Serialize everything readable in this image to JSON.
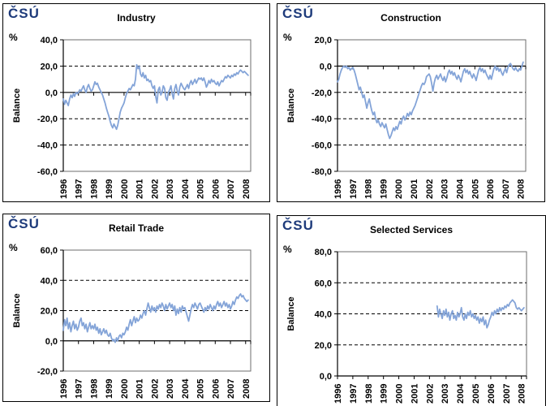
{
  "logo_text": "ČSÚ",
  "colors": {
    "line": "#84A4D8",
    "logo_blue": "#1E3B7B",
    "axis": "#000000",
    "plot_frame": "#6E6E6E",
    "panel_border": "#000000",
    "background": "#FFFFFF"
  },
  "chart_data": [
    {
      "type": "line",
      "title": "Industry",
      "unit_label": "%",
      "ylabel": "Balance",
      "ylim": [
        -60,
        40
      ],
      "ytick_step": 20,
      "ytick_labels": [
        "40,0",
        "20,0",
        "0,0",
        "-20,0",
        "-40,0",
        "-60,0"
      ],
      "number_format": "decimal-comma",
      "grid": "dashed-horizontal",
      "legend": "none",
      "x_months_total": 148,
      "x_tick_labels": [
        "1996",
        "1997",
        "1998",
        "1999",
        "2000",
        "2001",
        "2002",
        "2003",
        "2004",
        "2005",
        "2006",
        "2007",
        "2008"
      ],
      "series": [
        {
          "name": "Balance",
          "start_month": 0,
          "monthly_values": [
            -5,
            -9,
            -6,
            -8,
            -10,
            -5,
            -2,
            -4,
            -1,
            -3,
            0,
            -1,
            0,
            2,
            1,
            3,
            5,
            2,
            0,
            4,
            6,
            3,
            1,
            2,
            5,
            8,
            6,
            7,
            4,
            2,
            0,
            -2,
            -5,
            -8,
            -12,
            -15,
            -18,
            -22,
            -25,
            -27,
            -24,
            -26,
            -28,
            -25,
            -20,
            -15,
            -12,
            -10,
            -8,
            -4,
            -1,
            1,
            3,
            2,
            4,
            6,
            5,
            10,
            21,
            18,
            20,
            14,
            12,
            15,
            11,
            13,
            9,
            10,
            8,
            9,
            5,
            3,
            5,
            -3,
            -8,
            2,
            4,
            -2,
            0,
            5,
            3,
            -4,
            -6,
            0,
            2,
            5,
            -1,
            -5,
            3,
            6,
            1,
            -2,
            4,
            7,
            5,
            3,
            2,
            4,
            6,
            3,
            7,
            9,
            6,
            8,
            10,
            7,
            9,
            11,
            10,
            11,
            9,
            11,
            8,
            4,
            6,
            9,
            7,
            10,
            8,
            9,
            7,
            6,
            8,
            5,
            7,
            9,
            8,
            10,
            12,
            11,
            13,
            12,
            11,
            13,
            12,
            14,
            13,
            15,
            14,
            16,
            17,
            16,
            15,
            16,
            15,
            14,
            13
          ]
        }
      ]
    },
    {
      "type": "line",
      "title": "Construction",
      "unit_label": "%",
      "ylabel": "Balance",
      "ylim": [
        -80,
        20
      ],
      "ytick_step": 20,
      "ytick_labels": [
        "20,0",
        "0,0",
        "-20,0",
        "-40,0",
        "-60,0",
        "-80,0"
      ],
      "number_format": "decimal-comma",
      "grid": "dashed-horizontal",
      "legend": "none",
      "x_months_total": 148,
      "x_tick_labels": [
        "1996",
        "1997",
        "1998",
        "1999",
        "2000",
        "2001",
        "2002",
        "2003",
        "2004",
        "2005",
        "2006",
        "2007",
        "2008"
      ],
      "series": [
        {
          "name": "Balance",
          "start_month": 0,
          "monthly_values": [
            -12,
            -10,
            -6,
            -3,
            -1,
            0,
            -1,
            0,
            -2,
            -1,
            -3,
            -2,
            -1,
            -3,
            -6,
            -10,
            -14,
            -18,
            -16,
            -20,
            -24,
            -22,
            -27,
            -32,
            -28,
            -25,
            -30,
            -34,
            -37,
            -35,
            -40,
            -43,
            -41,
            -44,
            -46,
            -43,
            -45,
            -47,
            -44,
            -48,
            -52,
            -55,
            -53,
            -50,
            -47,
            -49,
            -46,
            -48,
            -45,
            -42,
            -44,
            -40,
            -38,
            -41,
            -39,
            -36,
            -38,
            -35,
            -37,
            -34,
            -32,
            -30,
            -27,
            -24,
            -21,
            -18,
            -15,
            -13,
            -14,
            -12,
            -8,
            -7,
            -6,
            -8,
            -13,
            -19,
            -13,
            -9,
            -7,
            -10,
            -8,
            -6,
            -9,
            -11,
            -8,
            -12,
            -9,
            -5,
            -3,
            -6,
            -4,
            -7,
            -5,
            -8,
            -10,
            -7,
            -9,
            -12,
            -8,
            -4,
            -2,
            -5,
            -3,
            -6,
            -4,
            -7,
            -9,
            -6,
            -8,
            -11,
            -7,
            -3,
            -1,
            -4,
            -2,
            -5,
            -3,
            -6,
            -8,
            -10,
            -7,
            -10,
            -6,
            -2,
            0,
            -3,
            -1,
            -4,
            -2,
            -5,
            -7,
            -4,
            -2,
            -5,
            -1,
            1,
            2,
            0,
            -2,
            -3,
            -1,
            -3,
            -4,
            -2,
            -3,
            0,
            3
          ]
        }
      ]
    },
    {
      "type": "line",
      "title": "Retail Trade",
      "unit_label": "%",
      "ylabel": "Balance",
      "ylim": [
        -20,
        60
      ],
      "ytick_step": 20,
      "ytick_labels": [
        "60,0",
        "40,0",
        "20,0",
        "0,0",
        "-20,0"
      ],
      "number_format": "decimal-comma",
      "grid": "dashed-horizontal",
      "legend": "none",
      "x_months_total": 148,
      "x_tick_labels": [
        "1996",
        "1997",
        "1998",
        "1999",
        "2000",
        "2001",
        "2002",
        "2003",
        "2004",
        "2005",
        "2006",
        "2007",
        "2008"
      ],
      "series": [
        {
          "name": "Balance",
          "start_month": 0,
          "monthly_values": [
            7,
            14,
            10,
            15,
            8,
            12,
            6,
            10,
            13,
            8,
            11,
            7,
            9,
            13,
            15,
            10,
            12,
            8,
            11,
            6,
            9,
            12,
            8,
            10,
            8,
            11,
            7,
            9,
            5,
            8,
            4,
            6,
            8,
            5,
            7,
            4,
            3,
            5,
            2,
            0,
            1,
            -1,
            2,
            0,
            3,
            4,
            2,
            5,
            4,
            6,
            9,
            7,
            11,
            14,
            10,
            13,
            16,
            12,
            15,
            13,
            14,
            17,
            15,
            18,
            20,
            17,
            21,
            25,
            22,
            19,
            23,
            20,
            22,
            19,
            23,
            21,
            24,
            22,
            25,
            23,
            20,
            24,
            21,
            23,
            25,
            22,
            24,
            20,
            23,
            17,
            21,
            18,
            22,
            19,
            23,
            21,
            22,
            19,
            16,
            13,
            17,
            21,
            24,
            22,
            25,
            23,
            21,
            24,
            25,
            23,
            21,
            19,
            22,
            20,
            23,
            21,
            24,
            22,
            20,
            23,
            21,
            24,
            26,
            23,
            25,
            22,
            24,
            26,
            23,
            25,
            22,
            24,
            21,
            23,
            26,
            24,
            27,
            29,
            28,
            30,
            31,
            29,
            30,
            28,
            27,
            26,
            27
          ]
        }
      ]
    },
    {
      "type": "line",
      "title": "Selected Services",
      "unit_label": "%",
      "ylabel": "Balance",
      "ylim": [
        0,
        80
      ],
      "ytick_step": 20,
      "ytick_labels": [
        "80,0",
        "60,0",
        "40,0",
        "20,0",
        "0,0"
      ],
      "number_format": "decimal-comma",
      "grid": "dashed-horizontal",
      "legend": "none",
      "x_months_total": 148,
      "x_tick_labels": [
        "1996",
        "1997",
        "1998",
        "1999",
        "2000",
        "2001",
        "2002",
        "2003",
        "2004",
        "2005",
        "2006",
        "2007",
        "2008"
      ],
      "series": [
        {
          "name": "Balance",
          "start_month": 78,
          "monthly_values": [
            45,
            38,
            43,
            40,
            37,
            42,
            39,
            43,
            38,
            41,
            36,
            40,
            42,
            37,
            39,
            36,
            41,
            38,
            40,
            44,
            38,
            36,
            40,
            37,
            41,
            39,
            42,
            38,
            40,
            37,
            39,
            36,
            38,
            34,
            37,
            35,
            38,
            33,
            36,
            31,
            33,
            36,
            38,
            41,
            39,
            42,
            40,
            43,
            41,
            44,
            42,
            44,
            43,
            45,
            44,
            46,
            45,
            47,
            48,
            49,
            48,
            47,
            44,
            43,
            44,
            43,
            42,
            43,
            44
          ]
        }
      ]
    }
  ]
}
